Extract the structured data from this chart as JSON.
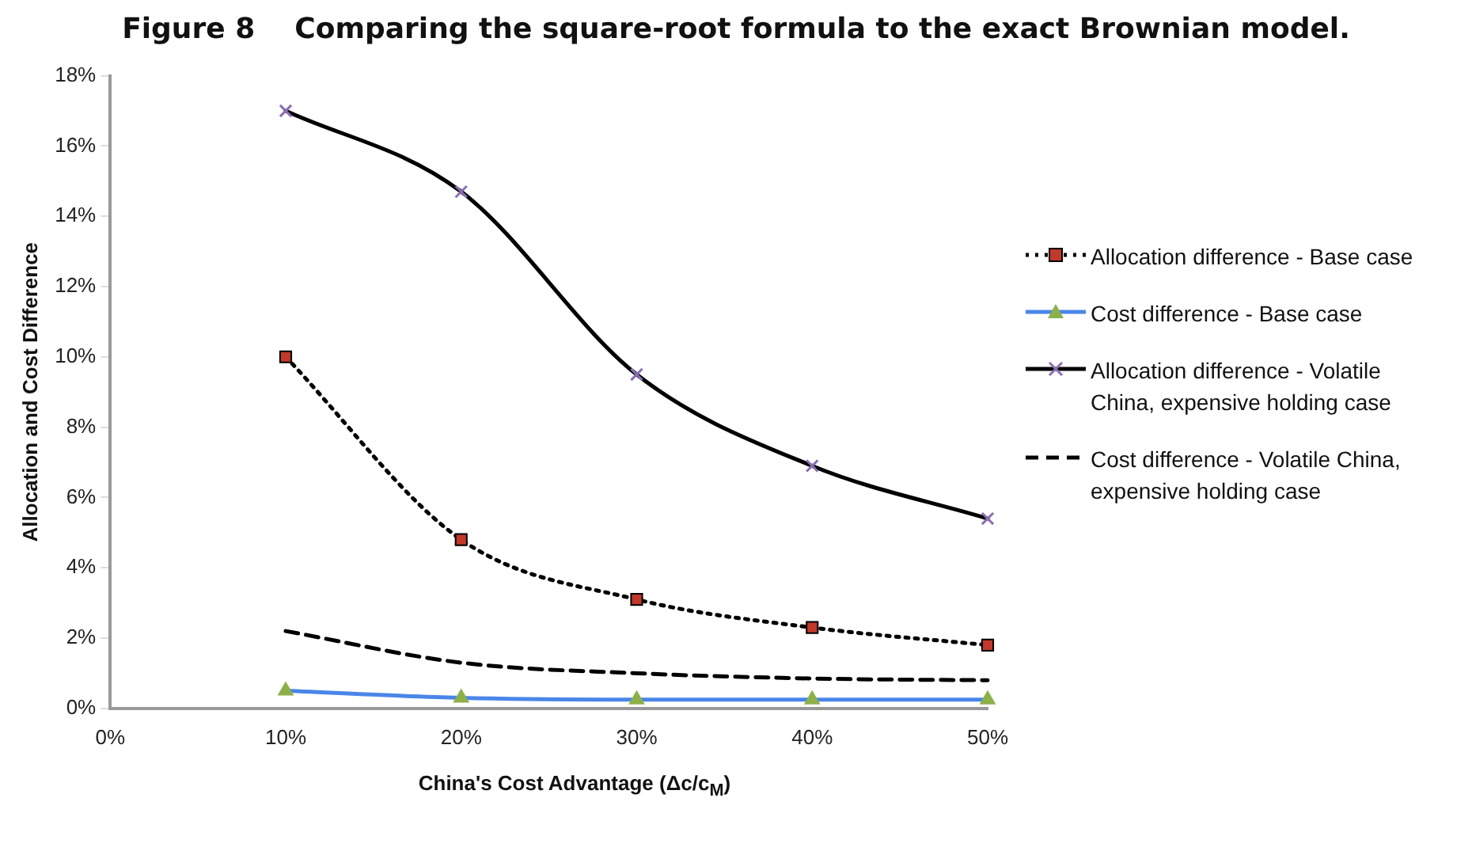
{
  "chart_data": {
    "type": "line",
    "title": "Figure 8    Comparing the square-root formula to the exact Brownian model.",
    "xlabel": "China's Cost Advantage (Δc/c$_{M}$)",
    "ylabel": "Allocation and Cost Difference",
    "x": [
      10,
      20,
      30,
      40,
      50
    ],
    "xlim": [
      0,
      50
    ],
    "xticks": [
      {
        "value": 0,
        "label": "0%"
      },
      {
        "value": 10,
        "label": "10%"
      },
      {
        "value": 20,
        "label": "20%"
      },
      {
        "value": 30,
        "label": "30%"
      },
      {
        "value": 40,
        "label": "40%"
      },
      {
        "value": 50,
        "label": "50%"
      }
    ],
    "ylim": [
      0,
      18
    ],
    "yticks": [
      {
        "value": 0,
        "label": "0%"
      },
      {
        "value": 2,
        "label": "2%"
      },
      {
        "value": 4,
        "label": "4%"
      },
      {
        "value": 6,
        "label": "6%"
      },
      {
        "value": 8,
        "label": "8%"
      },
      {
        "value": 10,
        "label": "10%"
      },
      {
        "value": 12,
        "label": "12%"
      },
      {
        "value": 14,
        "label": "14%"
      },
      {
        "value": 16,
        "label": "16%"
      },
      {
        "value": 18,
        "label": "18%"
      }
    ],
    "grid": false,
    "legend": "right",
    "series": [
      {
        "name": "Allocation difference - Base case",
        "color": "#000000",
        "colors": [
          "#c0392b",
          "#c0392b",
          "#c0392b",
          "#c0392b",
          "#c0392b"
        ],
        "marker": "square",
        "line_style": "dotted",
        "values": [
          10.0,
          4.8,
          3.1,
          2.3,
          1.8
        ]
      },
      {
        "name": "Cost difference - Base case",
        "color": "#4a86e8",
        "colors": [
          "#8db04a",
          "#8db04a",
          "#8db04a",
          "#8db04a",
          "#8db04a"
        ],
        "marker": "triangle",
        "line_style": "solid",
        "values": [
          0.5,
          0.3,
          0.25,
          0.25,
          0.25
        ]
      },
      {
        "name": "Allocation difference - Volatile China, expensive holding case",
        "color": "#000000",
        "colors": [
          "#8a6fb0",
          "#8a6fb0",
          "#8a6fb0",
          "#8a6fb0",
          "#8a6fb0"
        ],
        "marker": "cross",
        "line_style": "solid",
        "values": [
          17.0,
          14.7,
          9.5,
          6.9,
          5.4
        ]
      },
      {
        "name": "Cost difference - Volatile China, expensive holding case",
        "color": "#000000",
        "marker": "none",
        "line_style": "dashed",
        "values": [
          2.2,
          1.3,
          1.0,
          0.85,
          0.8
        ]
      }
    ]
  }
}
